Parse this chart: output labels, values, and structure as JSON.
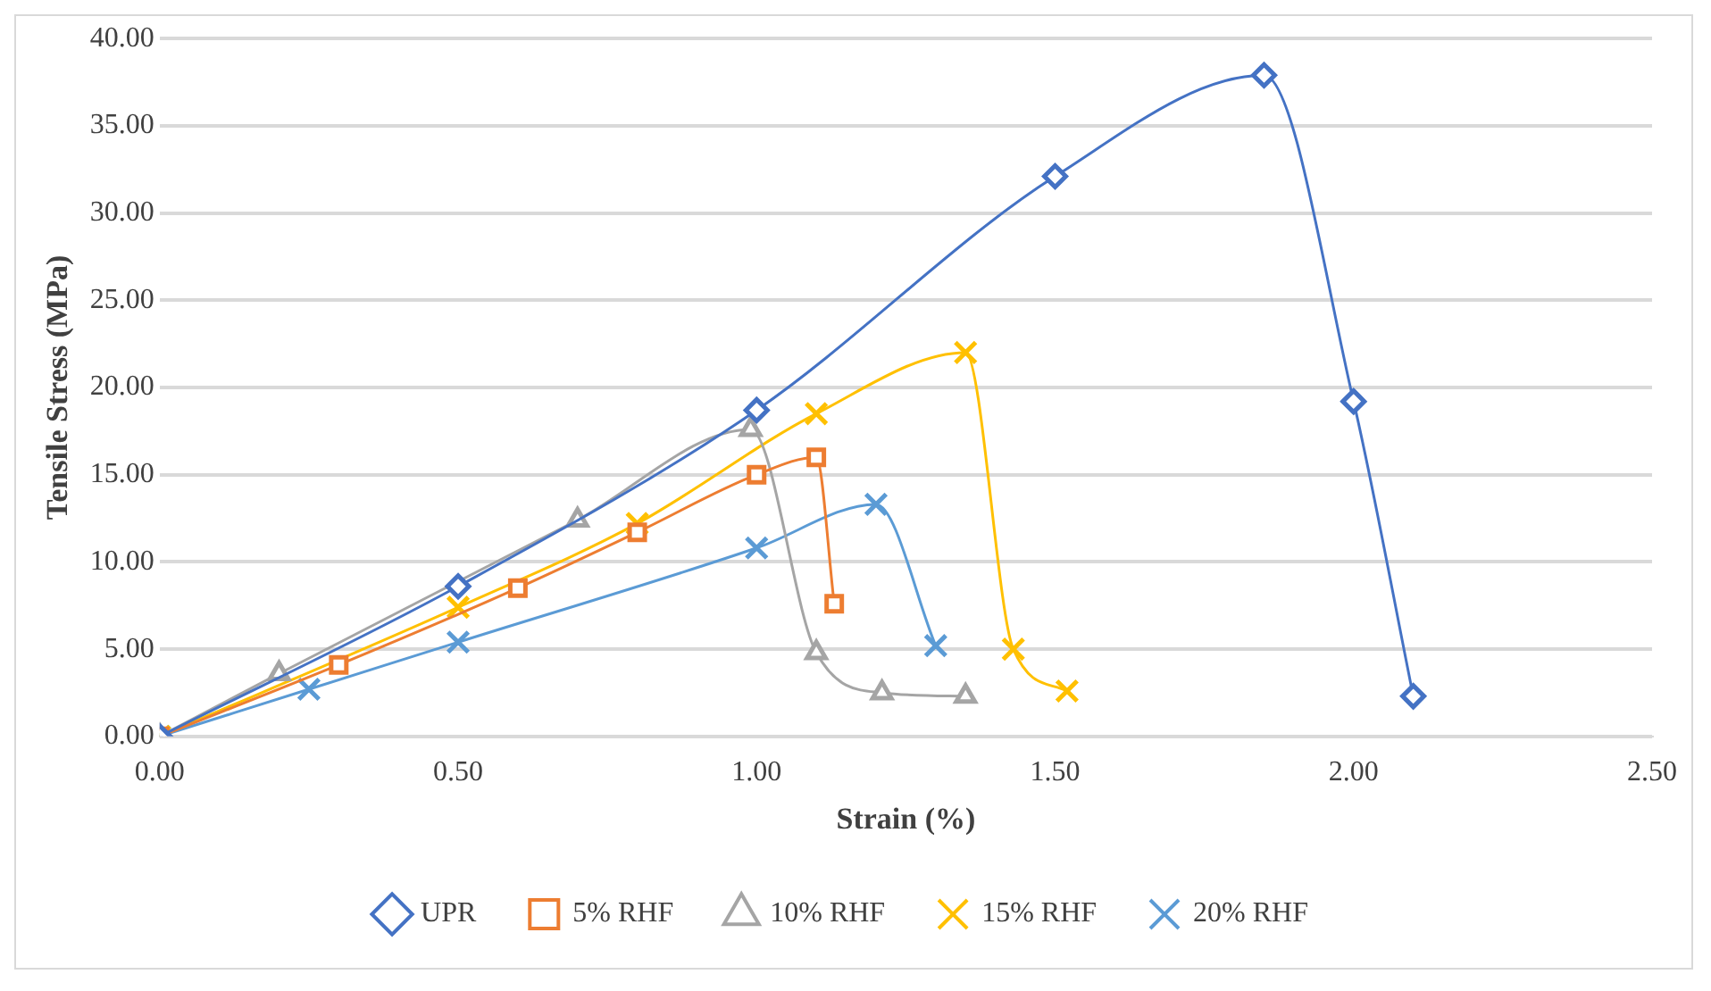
{
  "chart_data": {
    "type": "line",
    "xlabel": "Strain (%)",
    "ylabel": "Tensile Stress (MPa)",
    "xlim": [
      0,
      2.5
    ],
    "xticks": [
      {
        "value": 0,
        "label": "0.00"
      },
      {
        "value": 0.5,
        "label": "0.50"
      },
      {
        "value": 1,
        "label": "1.00"
      },
      {
        "value": 1.5,
        "label": "1.50"
      },
      {
        "value": 2,
        "label": "2.00"
      },
      {
        "value": 2.5,
        "label": "2.50"
      }
    ],
    "ylim": [
      0,
      40
    ],
    "yticks": [
      {
        "value": 0,
        "label": "0.00"
      },
      {
        "value": 5,
        "label": "5.00"
      },
      {
        "value": 10,
        "label": "10.00"
      },
      {
        "value": 15,
        "label": "15.00"
      },
      {
        "value": 20,
        "label": "20.00"
      },
      {
        "value": 25,
        "label": "25.00"
      },
      {
        "value": 30,
        "label": "30.00"
      },
      {
        "value": 35,
        "label": "35.00"
      },
      {
        "value": 40,
        "label": "40.00"
      }
    ],
    "grid": "y",
    "legend": "bottom",
    "series": [
      {
        "name": "UPR",
        "color": "#4472c4",
        "marker": "diamond",
        "x": [
          0,
          0.5,
          1.0,
          1.5,
          1.85,
          2.0,
          2.1
        ],
        "values": [
          0,
          8.6,
          18.7,
          32.1,
          37.9,
          19.2,
          2.3
        ]
      },
      {
        "name": "5% RHF",
        "color": "#ed7d31",
        "marker": "square",
        "x": [
          0,
          0.3,
          0.6,
          0.8,
          1.0,
          1.1,
          1.13
        ],
        "values": [
          0,
          4.1,
          8.5,
          11.7,
          15.0,
          16.0,
          7.6
        ]
      },
      {
        "name": "10% RHF",
        "color": "#a5a5a5",
        "marker": "triangle",
        "x": [
          0,
          0.2,
          0.7,
          0.99,
          1.1,
          1.21,
          1.35
        ],
        "values": [
          0,
          3.6,
          12.4,
          17.6,
          4.8,
          2.5,
          2.3
        ]
      },
      {
        "name": "15% RHF",
        "color": "#ffc000",
        "marker": "cross",
        "x": [
          0,
          0.5,
          0.8,
          1.1,
          1.35,
          1.43,
          1.52
        ],
        "values": [
          0,
          7.4,
          12.2,
          18.5,
          22.0,
          5.0,
          2.6
        ]
      },
      {
        "name": "20% RHF",
        "color": "#5b9bd5",
        "marker": "cross",
        "x": [
          0,
          0.25,
          0.5,
          1.0,
          1.2,
          1.3
        ],
        "values": [
          0,
          2.7,
          5.4,
          10.8,
          13.3,
          5.2
        ]
      }
    ]
  }
}
